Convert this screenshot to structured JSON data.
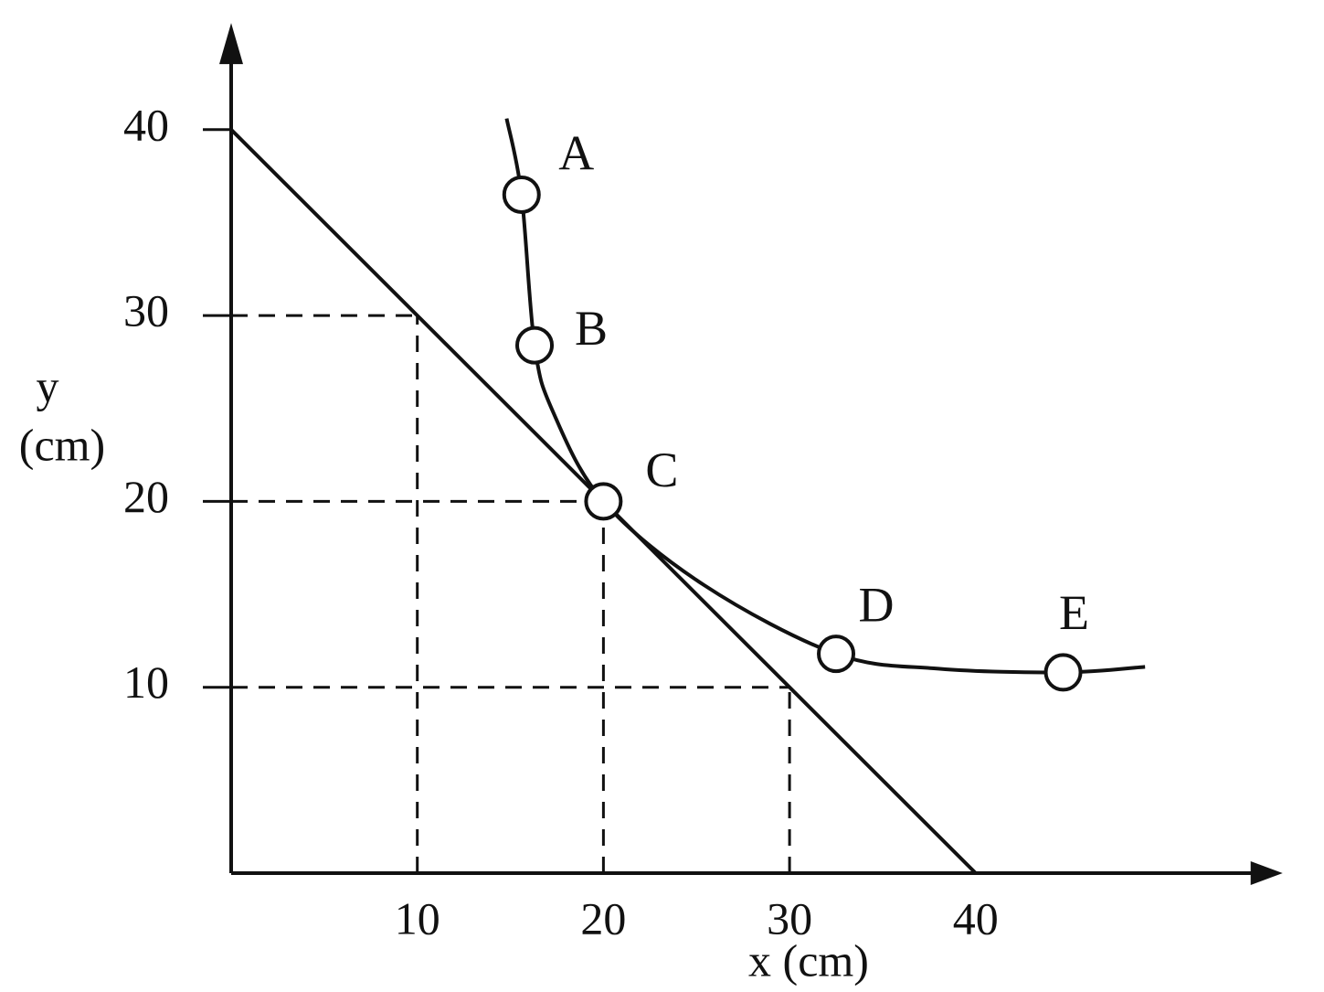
{
  "chart_data": {
    "type": "line",
    "xlabel": "x (cm)",
    "ylabel": [
      "y",
      "(cm)"
    ],
    "xlim": [
      0,
      56
    ],
    "ylim": [
      0,
      45
    ],
    "xticks": [
      10,
      20,
      30,
      40
    ],
    "yticks": [
      10,
      20,
      30,
      40
    ],
    "color": "#111111",
    "series": [
      {
        "x": [
          0,
          40
        ],
        "values": [
          40,
          0
        ]
      },
      {
        "x": [
          14.8,
          15.6,
          16.3,
          17.3,
          20,
          25.4,
          32.5,
          38,
          44.7,
          49.1
        ],
        "values": [
          40.6,
          36.5,
          28.4,
          24.8,
          20,
          15.5,
          11.8,
          11,
          10.8,
          11.1
        ]
      }
    ],
    "points": [
      {
        "label": "A",
        "x": 15.6,
        "y": 36.5
      },
      {
        "label": "B",
        "x": 16.3,
        "y": 28.4
      },
      {
        "label": "C",
        "x": 20,
        "y": 20
      },
      {
        "label": "D",
        "x": 32.5,
        "y": 11.8
      },
      {
        "label": "E",
        "x": 44.7,
        "y": 10.8
      }
    ],
    "guides": [
      {
        "x": 10,
        "y": 30
      },
      {
        "x": 20,
        "y": 20
      },
      {
        "x": 30,
        "y": 10
      }
    ]
  }
}
